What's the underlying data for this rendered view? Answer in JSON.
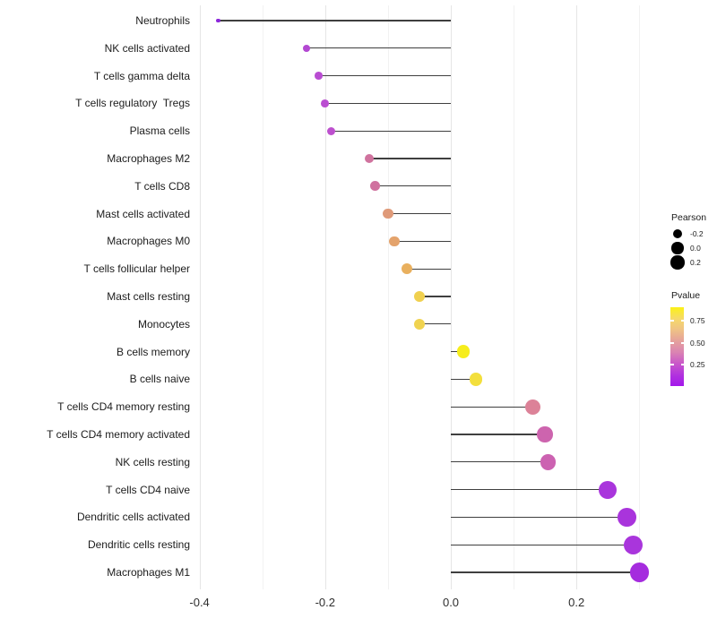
{
  "chart_data": {
    "type": "lollipop",
    "orientation": "horizontal",
    "title": "",
    "xlabel": "",
    "ylabel": "",
    "baseline_x": 0.0,
    "stem_color": "#3f3f3f",
    "x_axis": {
      "tick_values": [
        -0.4,
        -0.2,
        0.0,
        0.2
      ],
      "tick_labels": [
        "-0.4",
        "-0.2",
        "0.0",
        "0.2"
      ],
      "minor_gridlines": [
        -0.3,
        -0.1,
        0.1,
        0.3
      ],
      "range": [
        -0.45,
        0.33
      ],
      "grid": "vertical-only"
    },
    "categories": [
      "Neutrophils",
      "NK cells activated",
      "T cells gamma delta",
      "T cells regulatory  Tregs",
      "Plasma cells",
      "Macrophages M2",
      "T cells CD8",
      "Mast cells activated",
      "Macrophages M0",
      "T cells follicular helper",
      "Mast cells resting",
      "Monocytes",
      "B cells memory",
      "B cells naive",
      "T cells CD4 memory resting",
      "T cells CD4 memory activated",
      "NK cells resting",
      "T cells CD4 naive",
      "Dendritic cells activated",
      "Dendritic cells resting",
      "Macrophages M1"
    ],
    "series": [
      {
        "name": "Pearson",
        "values": [
          -0.37,
          -0.23,
          -0.21,
          -0.2,
          -0.19,
          -0.13,
          -0.12,
          -0.1,
          -0.09,
          -0.07,
          -0.05,
          -0.05,
          0.02,
          0.04,
          0.13,
          0.15,
          0.155,
          0.25,
          0.28,
          0.29,
          0.3
        ]
      },
      {
        "name": "Pvalue (estimated from color scale)",
        "values": [
          0.02,
          0.19,
          0.2,
          0.21,
          0.22,
          0.4,
          0.4,
          0.53,
          0.58,
          0.63,
          0.75,
          0.76,
          0.88,
          0.82,
          0.45,
          0.32,
          0.32,
          0.12,
          0.11,
          0.09,
          0.08
        ]
      }
    ],
    "point_colors": [
      "#8B27DA",
      "#B348D2",
      "#B94CD2",
      "#BA4DD1",
      "#BD50CE",
      "#D0739E",
      "#D0729F",
      "#DF9A79",
      "#E4A36C",
      "#E9B05E",
      "#F0D04F",
      "#F0D350",
      "#F6ED1C",
      "#F3DF3C",
      "#DC8298",
      "#CD64AE",
      "#CC62B1",
      "#A935DC",
      "#A934DC",
      "#A935DC",
      "#A52CDE"
    ]
  },
  "legend": {
    "size_legend": {
      "title": "Pearson",
      "dot_color": "#000000",
      "entries": [
        {
          "label": "-0.2",
          "radius": 5.2
        },
        {
          "label": "0.0",
          "radius": 6.6
        },
        {
          "label": "0.2",
          "radius": 7.6
        }
      ]
    },
    "color_legend": {
      "title": "Pvalue",
      "tick_labels": [
        "0.75",
        "0.50",
        "0.25"
      ],
      "gradient_top_to_bottom": [
        "#FBF116",
        "#F6DA69",
        "#EFC285",
        "#E5A19C",
        "#DA84B2",
        "#C957C9",
        "#B233DE",
        "#A317EB"
      ]
    }
  }
}
